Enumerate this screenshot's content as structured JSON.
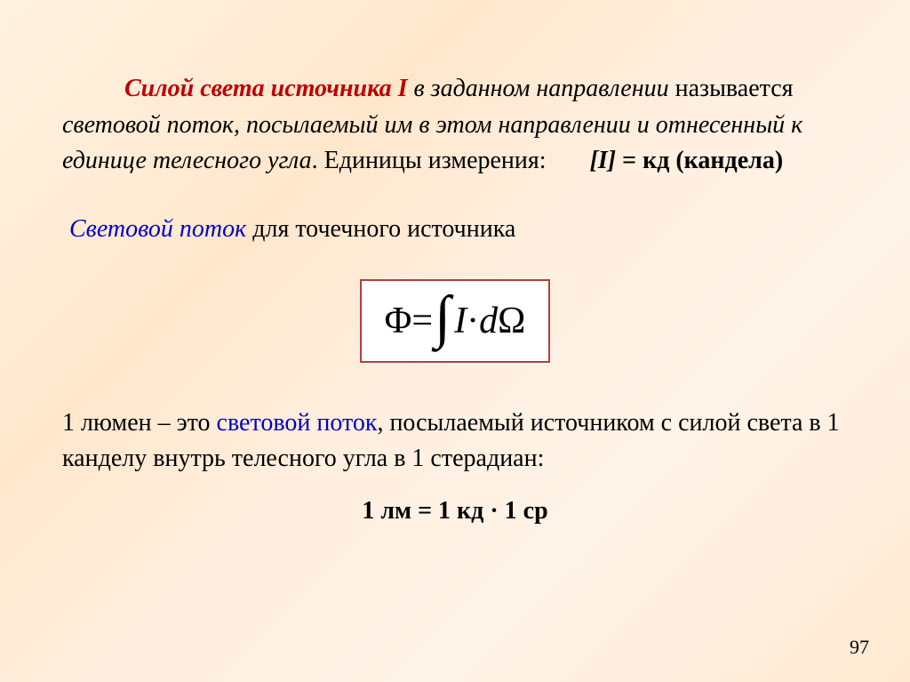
{
  "background": {
    "gradient_from": "#fff2e0",
    "gradient_to": "#ffe9d0"
  },
  "colors": {
    "title_red": "#c00000",
    "link_blue": "#0000cc",
    "text_black": "#000000",
    "formula_border": "#b04040",
    "formula_bg": "#ffffff"
  },
  "typography": {
    "family": "Times New Roman",
    "body_size_pt": 21,
    "formula_size_pt": 32
  },
  "para1": {
    "lead": "Силой света источника I",
    "cont_italic_1": " в заданном направлении ",
    "plain_1": "называется ",
    "cont_italic_2": "световой поток, посылаемый им в этом направлении и отнесенный к единице телесного угла",
    "dot": ". ",
    "units_label": "Единицы измерения:",
    "units_value": "[I] = кд (кандела)"
  },
  "para2": {
    "blue": "Световой поток",
    "rest": "  для точечного источника"
  },
  "formula": {
    "lhs": "Φ",
    "eq": " = ",
    "integral": "∫",
    "integrand_I": "I",
    "cdot": " · ",
    "d": "d",
    "Omega": "Ω"
  },
  "para3": {
    "lead": "1 люмен",
    "dash": " – это ",
    "blue": "световой поток",
    "rest": ", посылаемый источником с силой света в 1 канделу внутрь телесного угла в 1 стерадиан:"
  },
  "para4": {
    "text": "1 лм = 1 кд · 1 ср"
  },
  "page_number": "97"
}
